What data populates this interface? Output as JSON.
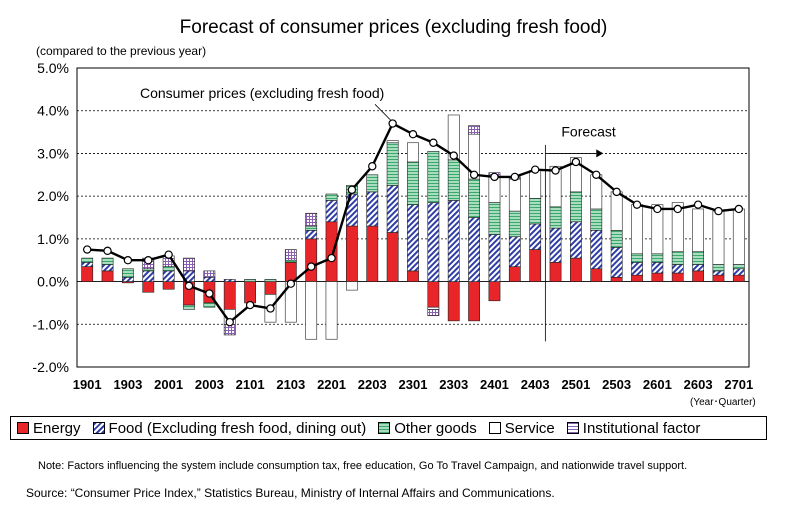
{
  "chart_data": {
    "type": "bar",
    "title": "Forecast of consumer prices (excluding fresh food)",
    "ylabel": "(compared to the previous year)",
    "xlabel": "(Year･Quarter)",
    "ylim": [
      -2.0,
      5.0
    ],
    "ytick_step": 1.0,
    "yticks": [
      "5.0%",
      "4.0%",
      "3.0%",
      "2.0%",
      "1.0%",
      "0.0%",
      "-1.0%",
      "-2.0%"
    ],
    "tick_labels": [
      "1901",
      "1903",
      "2001",
      "2003",
      "2101",
      "2103",
      "2201",
      "2203",
      "2301",
      "2303",
      "2401",
      "2403",
      "2501",
      "2503",
      "2601",
      "2603",
      "2701"
    ],
    "categories": [
      "1901",
      "1902",
      "1903",
      "1904",
      "2001",
      "2002",
      "2003",
      "2004",
      "2101",
      "2102",
      "2103",
      "2104",
      "2201",
      "2202",
      "2203",
      "2204",
      "2301",
      "2302",
      "2303",
      "2304",
      "2401",
      "2402",
      "2403",
      "2404",
      "2501",
      "2502",
      "2503",
      "2504",
      "2601",
      "2602",
      "2603",
      "2604",
      "2701"
    ],
    "forecast_start": "2403",
    "series": [
      {
        "name": "Energy",
        "color": "#e8262a",
        "values": [
          0.35,
          0.25,
          -0.03,
          -0.25,
          -0.18,
          -0.55,
          -0.5,
          -0.65,
          -0.5,
          -0.3,
          0.45,
          1.0,
          1.4,
          1.3,
          1.3,
          1.15,
          0.25,
          -0.6,
          -0.92,
          -0.92,
          -0.45,
          0.35,
          0.75,
          0.45,
          0.55,
          0.3,
          0.1,
          0.15,
          0.2,
          0.2,
          0.25,
          0.15,
          0.15
        ]
      },
      {
        "name": "Food (Excluding fresh food, dining out)",
        "color": "#2f3ea6",
        "values": [
          0.1,
          0.15,
          0.1,
          0.25,
          0.25,
          0.25,
          0.1,
          0.05,
          0.0,
          0.0,
          0.0,
          0.2,
          0.5,
          0.75,
          0.8,
          1.1,
          1.55,
          1.85,
          1.9,
          1.5,
          1.1,
          0.7,
          0.6,
          0.8,
          0.85,
          0.9,
          0.7,
          0.3,
          0.25,
          0.2,
          0.15,
          0.1,
          0.15
        ]
      },
      {
        "name": "Other goods",
        "color": "#3aa96b",
        "values": [
          0.1,
          0.15,
          0.2,
          0.05,
          0.1,
          -0.1,
          -0.1,
          0.0,
          0.05,
          0.05,
          0.05,
          0.1,
          0.15,
          0.2,
          0.4,
          1.0,
          1.0,
          1.2,
          0.95,
          0.9,
          0.75,
          0.6,
          0.6,
          0.5,
          0.7,
          0.5,
          0.4,
          0.2,
          0.2,
          0.3,
          0.3,
          0.15,
          0.1
        ]
      },
      {
        "name": "Service",
        "color": "#ffffff",
        "values": [
          0.0,
          0.0,
          0.0,
          0.0,
          0.0,
          0.0,
          0.0,
          -0.35,
          0.0,
          -0.65,
          -0.95,
          -1.35,
          -1.35,
          -0.2,
          0.0,
          0.05,
          0.45,
          -0.05,
          1.05,
          1.05,
          0.6,
          0.75,
          0.65,
          0.95,
          0.8,
          0.8,
          0.9,
          1.15,
          1.15,
          1.15,
          1.0,
          1.25,
          1.3
        ]
      },
      {
        "name": "Institutional factor",
        "color": "#8b5fb3",
        "values": [
          0.0,
          0.0,
          0.0,
          0.25,
          0.25,
          0.3,
          0.15,
          -0.25,
          0.0,
          0.0,
          0.25,
          0.3,
          0.0,
          0.0,
          0.0,
          0.0,
          0.0,
          -0.15,
          0.0,
          0.2,
          0.1,
          0.05,
          0.0,
          0.0,
          0.0,
          0.0,
          0.0,
          0.0,
          0.0,
          0.0,
          0.0,
          0.0,
          0.0
        ]
      }
    ],
    "line": {
      "name": "Consumer prices (excluding fresh food)",
      "values": [
        0.75,
        0.72,
        0.5,
        0.5,
        0.63,
        -0.1,
        -0.28,
        -0.95,
        -0.55,
        -0.63,
        -0.05,
        0.35,
        0.55,
        2.15,
        2.7,
        3.7,
        3.45,
        3.25,
        2.95,
        2.5,
        2.45,
        2.45,
        2.62,
        2.6,
        2.8,
        2.5,
        2.1,
        1.8,
        1.7,
        1.7,
        1.8,
        1.65,
        1.7
      ]
    },
    "annotations": [
      "Consumer prices (excluding fresh food)",
      "Forecast"
    ]
  },
  "legend": [
    "Energy",
    "Food (Excluding fresh food, dining out)",
    "Other goods",
    "Service",
    "Institutional factor"
  ],
  "note": "Note: Factors influencing the system include consumption tax, free education, Go To Travel Campaign, and nationwide travel support.",
  "source": "Source: “Consumer Price Index,” Statistics Bureau, Ministry of Internal Affairs and Communications."
}
